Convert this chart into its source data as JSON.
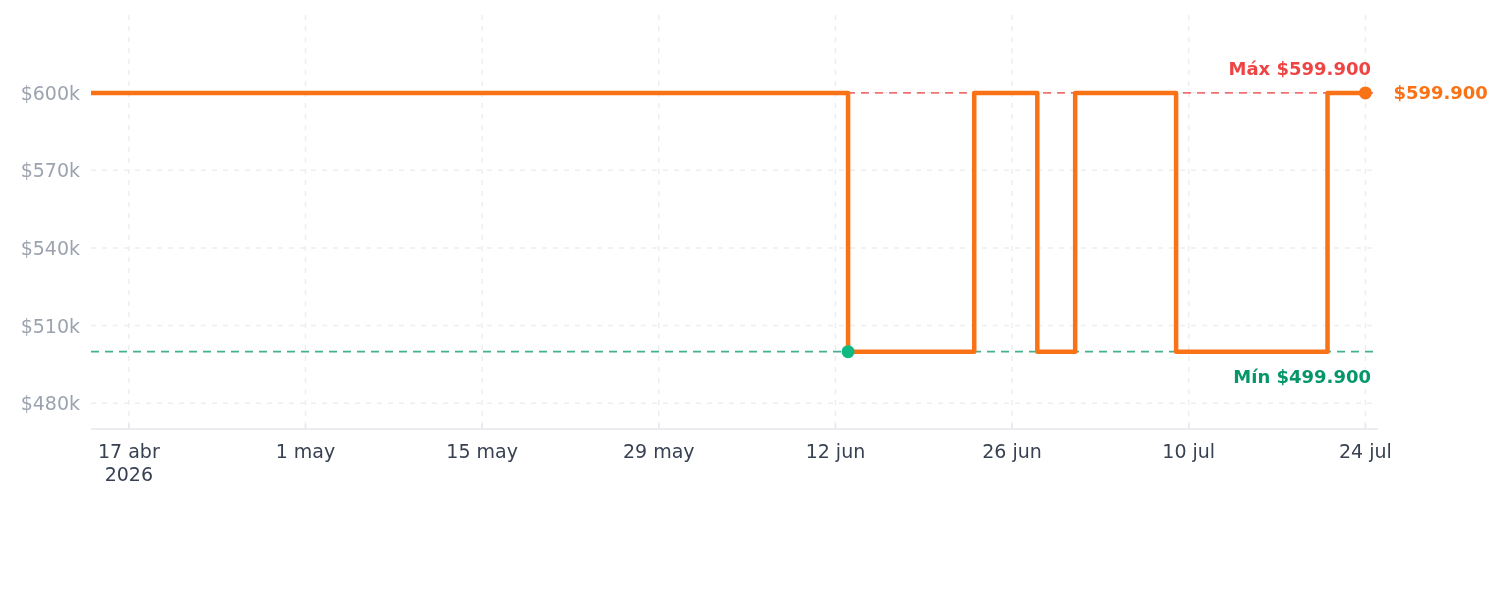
{
  "chart_data": {
    "type": "step",
    "x": [
      "2026-04-14",
      "2026-06-13",
      "2026-06-23",
      "2026-06-28",
      "2026-07-01",
      "2026-07-09",
      "2026-07-21",
      "2026-07-24"
    ],
    "series": [
      {
        "color": "#f97316",
        "values": [
          599900,
          499900,
          599900,
          499900,
          599900,
          499900,
          599900,
          599900
        ]
      },
      {
        "type": "scatter",
        "color": "#10b981",
        "x": [
          "2026-06-13"
        ],
        "values": [
          499900
        ],
        "marker": "circle"
      },
      {
        "type": "scatter",
        "color": "#f97316",
        "x": [
          "2026-07-24"
        ],
        "values": [
          599900
        ],
        "marker": "circle"
      }
    ],
    "xlim": [
      "2026-04-14",
      "2026-07-25"
    ],
    "xticks": [
      {
        "value": "2026-04-17",
        "label": "17 abr\n2026"
      },
      {
        "value": "2026-05-01",
        "label": "1 may"
      },
      {
        "value": "2026-05-15",
        "label": "15 may"
      },
      {
        "value": "2026-05-29",
        "label": "29 may"
      },
      {
        "value": "2026-06-12",
        "label": "12 jun"
      },
      {
        "value": "2026-06-26",
        "label": "26 jun"
      },
      {
        "value": "2026-07-10",
        "label": "10 jul"
      },
      {
        "value": "2026-07-24",
        "label": "24 jul"
      }
    ],
    "ylim": [
      470000,
      630000
    ],
    "yticks": [
      {
        "value": 480000,
        "label": "$480k"
      },
      {
        "value": 510000,
        "label": "$510k"
      },
      {
        "value": 540000,
        "label": "$540k"
      },
      {
        "value": 570000,
        "label": "$570k"
      },
      {
        "value": 600000,
        "label": "$600k"
      }
    ],
    "grid": true,
    "ref_lines": [
      {
        "axis": "y",
        "value": 599900,
        "label": "Máx $599.900",
        "color": "#ef4444",
        "line_style": "dashed"
      },
      {
        "axis": "y",
        "value": 499900,
        "label": "Mín $499.900",
        "color": "#059669",
        "line_style": "dashed"
      }
    ],
    "annotations": [
      {
        "text": "$599.900",
        "x": "2026-07-24",
        "y": 599900
      }
    ]
  }
}
